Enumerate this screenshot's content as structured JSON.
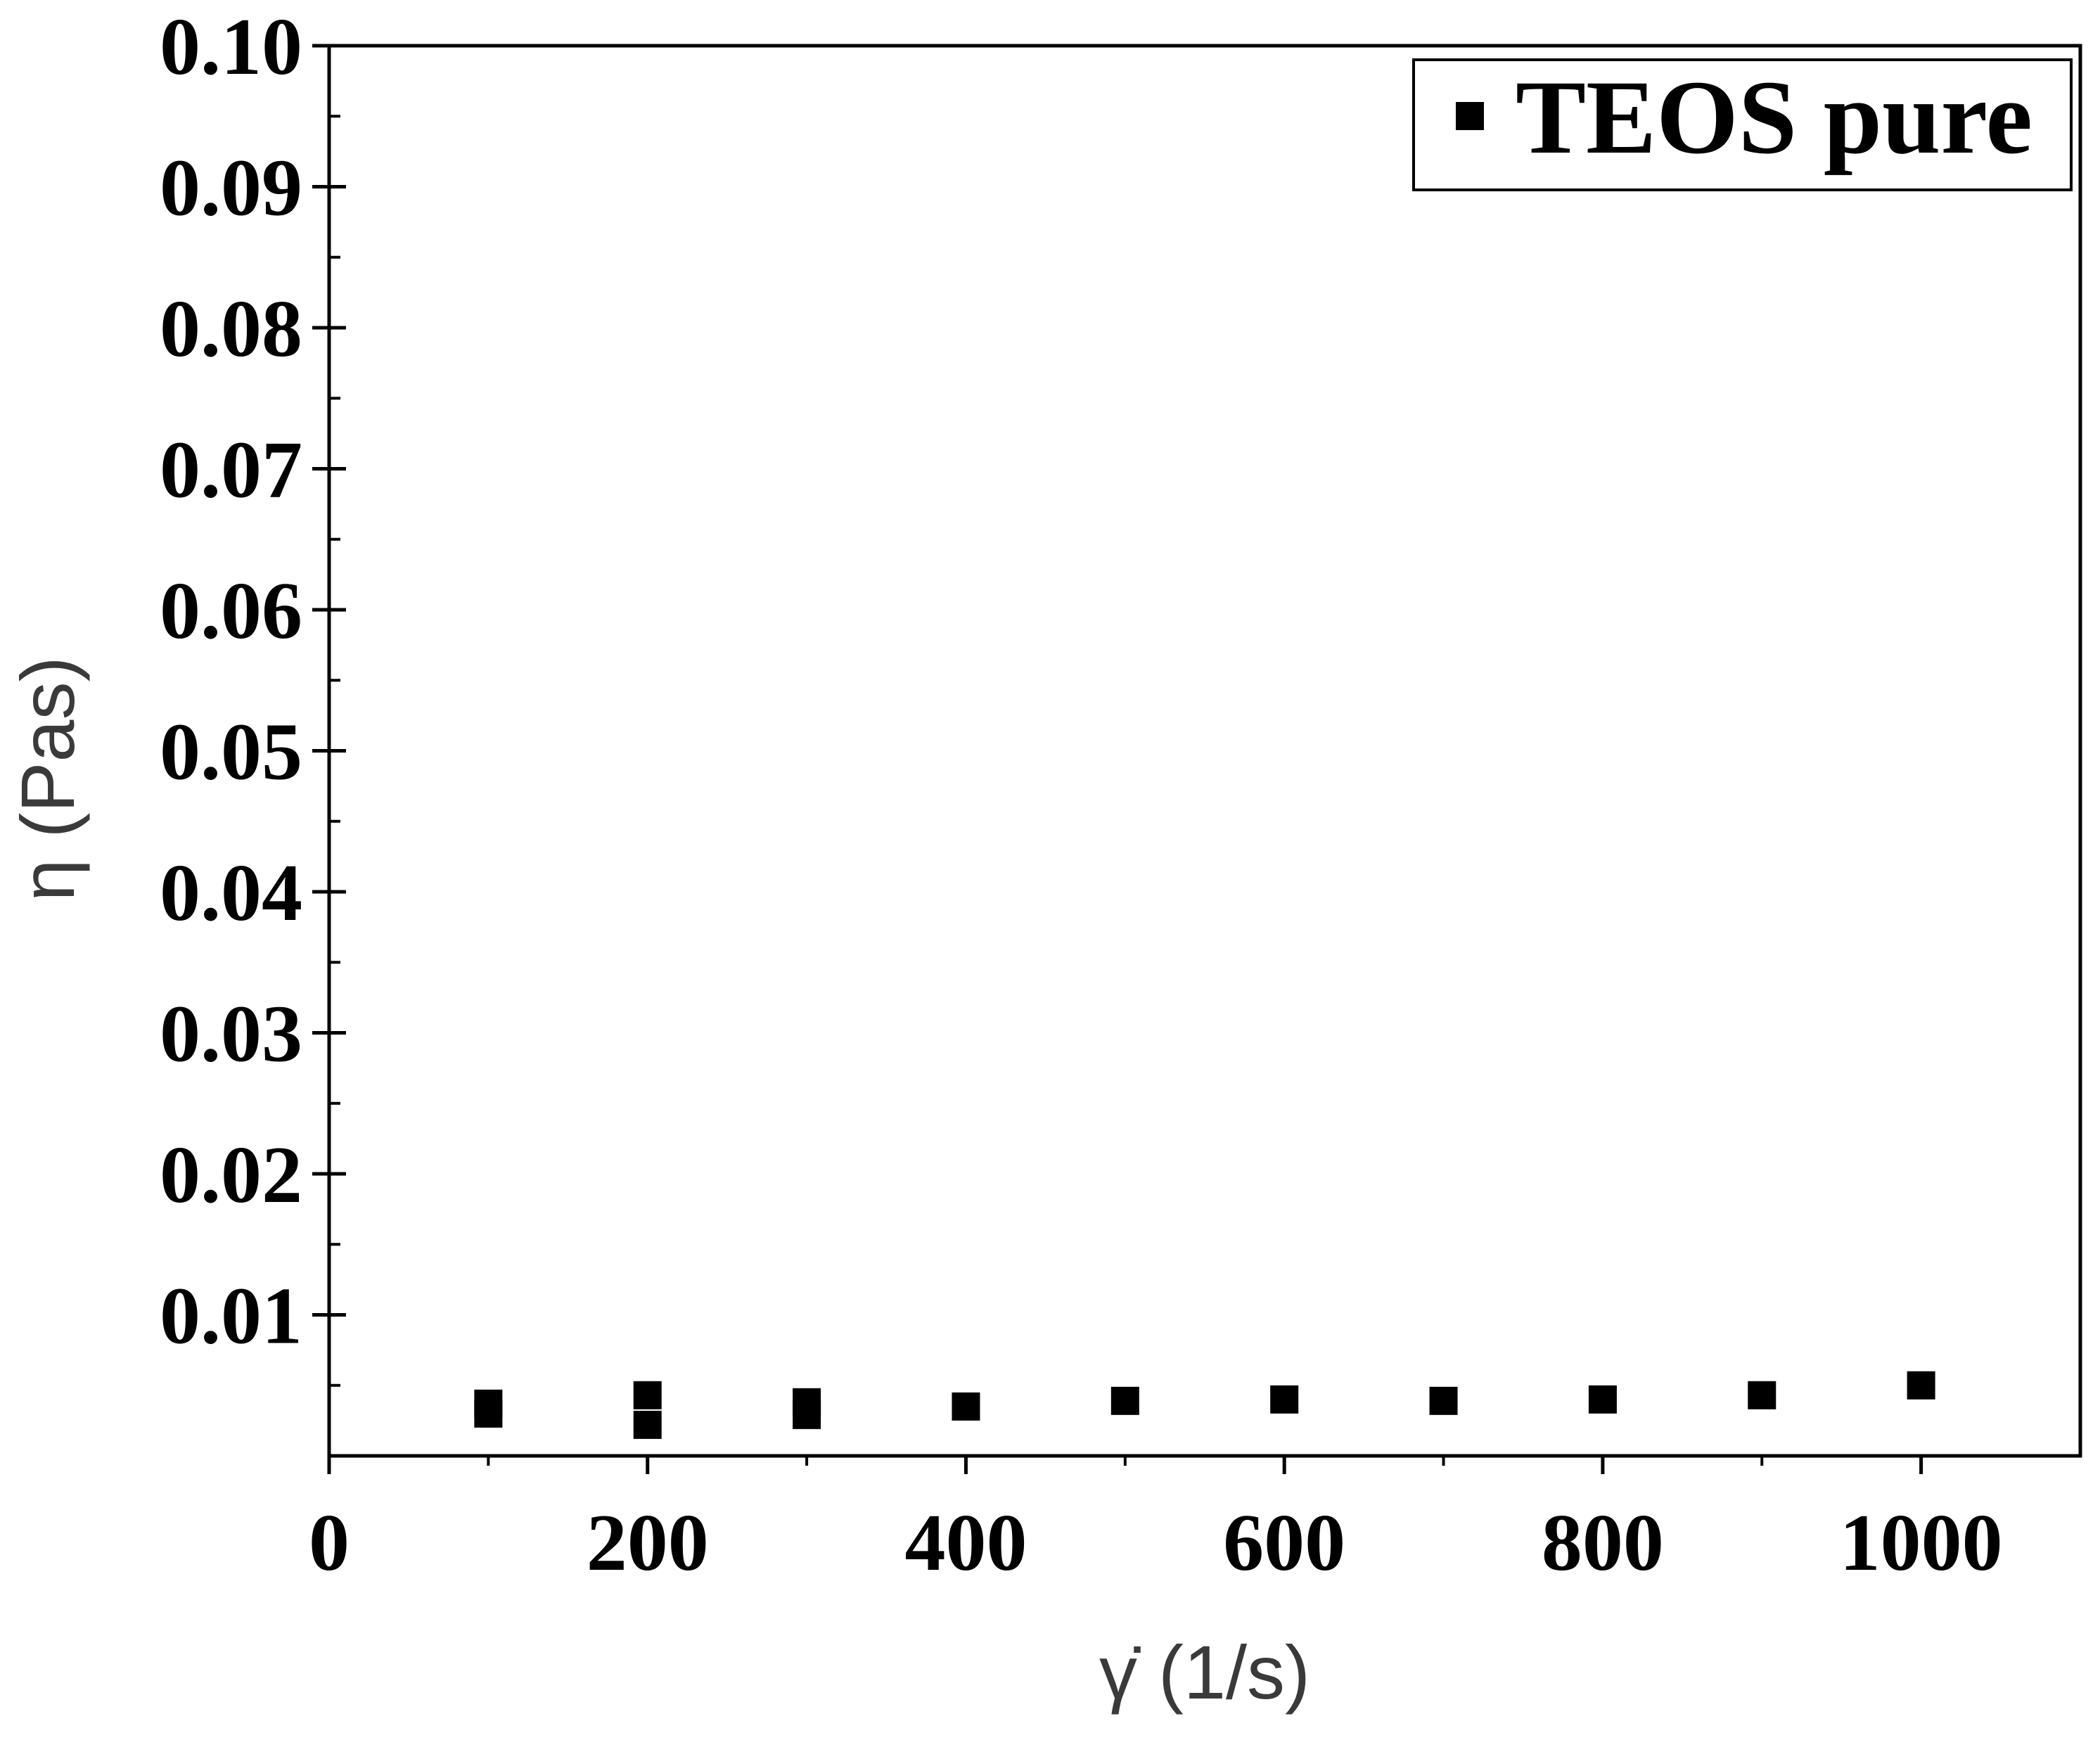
{
  "chart_data": {
    "type": "scatter",
    "title": "",
    "xlabel": "γ̇ (1/s)",
    "ylabel": "η (Pas)",
    "xlim": [
      0,
      1100
    ],
    "ylim": [
      0,
      0.1
    ],
    "x_ticks": [
      0,
      200,
      400,
      600,
      800,
      1000
    ],
    "x_tick_labels": [
      "0",
      "200",
      "400",
      "600",
      "800",
      "1000"
    ],
    "y_ticks": [
      0.01,
      0.02,
      0.03,
      0.04,
      0.05,
      0.06,
      0.07,
      0.08,
      0.09,
      0.1
    ],
    "y_tick_labels": [
      "0.01",
      "0.02",
      "0.03",
      "0.04",
      "0.05",
      "0.06",
      "0.07",
      "0.08",
      "0.09",
      "0.10"
    ],
    "y_minor_step": 0.005,
    "grid": false,
    "legend_position": "top-right",
    "series": [
      {
        "name": "TEOS pure",
        "marker": "square",
        "color": "#000000",
        "points": [
          {
            "x": 100,
            "y": 0.0037
          },
          {
            "x": 100,
            "y": 0.003
          },
          {
            "x": 200,
            "y": 0.0043
          },
          {
            "x": 200,
            "y": 0.0022
          },
          {
            "x": 300,
            "y": 0.0038
          },
          {
            "x": 300,
            "y": 0.0029
          },
          {
            "x": 400,
            "y": 0.0035
          },
          {
            "x": 500,
            "y": 0.0039
          },
          {
            "x": 600,
            "y": 0.004
          },
          {
            "x": 700,
            "y": 0.0039
          },
          {
            "x": 800,
            "y": 0.004
          },
          {
            "x": 900,
            "y": 0.0043
          },
          {
            "x": 1000,
            "y": 0.005
          }
        ]
      }
    ]
  }
}
